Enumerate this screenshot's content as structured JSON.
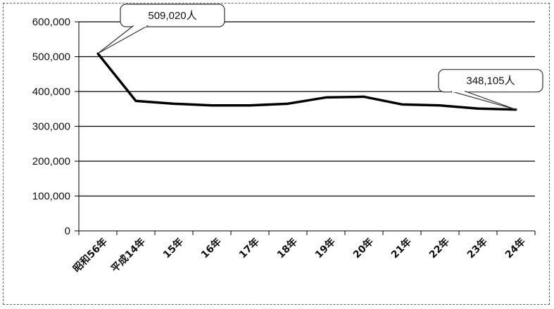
{
  "chart_data": {
    "type": "line",
    "categories": [
      "昭和56年",
      "平成14年",
      "15年",
      "16年",
      "17年",
      "18年",
      "19年",
      "20年",
      "21年",
      "22年",
      "23年",
      "24年"
    ],
    "series": [
      {
        "values": [
          509020,
          373000,
          365000,
          360000,
          360000,
          365000,
          383000,
          385000,
          363000,
          360000,
          351000,
          348105
        ]
      }
    ],
    "ylim": [
      0,
      600000
    ],
    "yticks": [
      "0",
      "100,000",
      "200,000",
      "300,000",
      "400,000",
      "500,000",
      "600,000"
    ],
    "grid": true,
    "annotations": [
      {
        "text": "509,020人",
        "category": "昭和56年"
      },
      {
        "text": "348,105人",
        "category": "24年"
      }
    ],
    "colors": {
      "line": "#000000",
      "grid": "#000000",
      "axis": "#000000"
    }
  }
}
